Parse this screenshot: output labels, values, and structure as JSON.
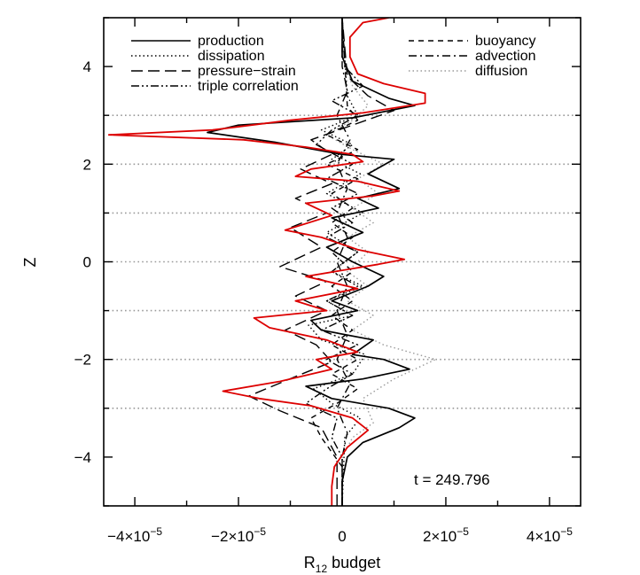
{
  "chart_data": {
    "type": "line",
    "title": "",
    "xlabel": "R",
    "xlabel_subscript": "12",
    "xlabel_suffix": "budget",
    "ylabel": "Z",
    "xlim": [
      -4.6e-05,
      4.6e-05
    ],
    "ylim": [
      -5,
      5
    ],
    "x_ticks": [
      {
        "value": -4e-05,
        "label_mantissa": "−4×10",
        "label_exp": "−5"
      },
      {
        "value": -2e-05,
        "label_mantissa": "−2×10",
        "label_exp": "−5"
      },
      {
        "value": 0,
        "label_mantissa": "0",
        "label_exp": ""
      },
      {
        "value": 2e-05,
        "label_mantissa": "2×10",
        "label_exp": "−5"
      },
      {
        "value": 4e-05,
        "label_mantissa": "4×10",
        "label_exp": "−5"
      }
    ],
    "y_ticks": [
      {
        "value": -4,
        "label": "−4"
      },
      {
        "value": -2,
        "label": "−2"
      },
      {
        "value": 0,
        "label": "0"
      },
      {
        "value": 2,
        "label": "2"
      },
      {
        "value": 4,
        "label": "4"
      }
    ],
    "gridlines_y": [
      -3,
      -2,
      -1,
      0,
      1,
      2,
      3
    ],
    "grid_color": "#9a9a9a",
    "annotation": "t  =  249.796",
    "legend_placement": "top",
    "legend": [
      {
        "name": "production",
        "style": "solid",
        "color": "#000000"
      },
      {
        "name": "dissipation",
        "style": "dotted",
        "color": "#000000"
      },
      {
        "name": "pressure−strain",
        "style": "longdash",
        "color": "#000000"
      },
      {
        "name": "triple correlation",
        "style": "dashdotdot",
        "color": "#000000"
      },
      {
        "name": "buoyancy",
        "style": "dashed",
        "color": "#000000"
      },
      {
        "name": "advection",
        "style": "dashdot",
        "color": "#000000"
      },
      {
        "name": "diffusion",
        "style": "dotted",
        "color": "#9a9a9a"
      }
    ],
    "series": [
      {
        "name": "production",
        "style": "solid",
        "color": "#000000",
        "points": [
          [
            0,
            -5
          ],
          [
            0,
            -4.5
          ],
          [
            1e-06,
            -4
          ],
          [
            4e-06,
            -3.7
          ],
          [
            1.1e-05,
            -3.4
          ],
          [
            1.4e-05,
            -3.2
          ],
          [
            9e-06,
            -3.0
          ],
          [
            -2e-06,
            -2.8
          ],
          [
            -7e-06,
            -2.55
          ],
          [
            4e-06,
            -2.4
          ],
          [
            1.3e-05,
            -2.2
          ],
          [
            8e-06,
            -2.0
          ],
          [
            2e-06,
            -1.9
          ],
          [
            6e-06,
            -1.6
          ],
          [
            -4e-06,
            -1.4
          ],
          [
            -6e-06,
            -1.2
          ],
          [
            3e-06,
            -1.0
          ],
          [
            -2e-06,
            -0.8
          ],
          [
            5e-06,
            -0.5
          ],
          [
            8e-06,
            -0.3
          ],
          [
            2e-06,
            0
          ],
          [
            -3e-06,
            0.3
          ],
          [
            4e-06,
            0.6
          ],
          [
            -2e-06,
            0.9
          ],
          [
            7e-06,
            1.1
          ],
          [
            3e-06,
            1.3
          ],
          [
            1.1e-05,
            1.5
          ],
          [
            5e-06,
            1.8
          ],
          [
            1e-05,
            2.1
          ],
          [
            0,
            2.2
          ],
          [
            -1.3e-05,
            2.45
          ],
          [
            -2.6e-05,
            2.65
          ],
          [
            -2e-05,
            2.8
          ],
          [
            2e-06,
            2.95
          ],
          [
            1.4e-05,
            3.2
          ],
          [
            9e-06,
            3.35
          ],
          [
            2e-06,
            3.7
          ],
          [
            0,
            4.2
          ],
          [
            0,
            5
          ]
        ]
      },
      {
        "name": "dissipation",
        "style": "dotted",
        "color": "#000000",
        "points": [
          [
            0,
            -5
          ],
          [
            5e-07,
            -3.6
          ],
          [
            3.5e-06,
            -3.2
          ],
          [
            -2e-06,
            -2.9
          ],
          [
            -5.5e-06,
            -2.6
          ],
          [
            2e-06,
            -2.3
          ],
          [
            4.5e-06,
            -1.9
          ],
          [
            -4e-06,
            -1.6
          ],
          [
            -6.5e-06,
            -1.3
          ],
          [
            2e-06,
            -1.1
          ],
          [
            -3e-06,
            -0.8
          ],
          [
            4e-06,
            -0.5
          ],
          [
            -2e-06,
            -0.2
          ],
          [
            3e-06,
            0.2
          ],
          [
            -3e-06,
            0.6
          ],
          [
            4e-06,
            1.0
          ],
          [
            -3e-06,
            1.4
          ],
          [
            3.5e-06,
            1.8
          ],
          [
            -2e-06,
            2.1
          ],
          [
            2e-06,
            2.4
          ],
          [
            -4e-06,
            2.7
          ],
          [
            3e-06,
            3.0
          ],
          [
            1e-06,
            3.4
          ],
          [
            0,
            5
          ]
        ]
      },
      {
        "name": "pressure−strain",
        "style": "longdash",
        "color": "#000000",
        "points": [
          [
            -1e-06,
            -5
          ],
          [
            -1e-06,
            -4.0
          ],
          [
            -4e-06,
            -3.4
          ],
          [
            -1.2e-05,
            -3.05
          ],
          [
            -1.8e-05,
            -2.75
          ],
          [
            -9e-06,
            -2.35
          ],
          [
            -2e-06,
            -2.05
          ],
          [
            -5e-06,
            -1.7
          ],
          [
            -1.1e-05,
            -1.4
          ],
          [
            -3e-06,
            -1.0
          ],
          [
            -9e-06,
            -0.7
          ],
          [
            -3e-06,
            -0.4
          ],
          [
            -1.2e-05,
            -0.1
          ],
          [
            -4e-06,
            0.3
          ],
          [
            -1e-05,
            0.7
          ],
          [
            -3e-06,
            1.0
          ],
          [
            -9e-06,
            1.3
          ],
          [
            -2e-06,
            1.6
          ],
          [
            -8e-06,
            1.9
          ],
          [
            -2e-06,
            2.2
          ],
          [
            -6e-06,
            2.5
          ],
          [
            2e-06,
            2.8
          ],
          [
            1e-05,
            3.1
          ],
          [
            5e-06,
            3.4
          ],
          [
            1e-06,
            3.8
          ],
          [
            0,
            5
          ]
        ]
      },
      {
        "name": "triple correlation",
        "style": "dashdotdot",
        "color": "#000000",
        "points": [
          [
            0,
            -5
          ],
          [
            0,
            -4
          ],
          [
            -2e-06,
            -3.6
          ],
          [
            -1e-06,
            -3.2
          ],
          [
            -7e-06,
            -2.9
          ],
          [
            -3e-06,
            -2.6
          ],
          [
            2e-06,
            -2.3
          ],
          [
            -3e-06,
            -2.0
          ],
          [
            3e-06,
            -1.7
          ],
          [
            -4e-06,
            -1.4
          ],
          [
            2e-06,
            -1.1
          ],
          [
            -3e-06,
            -0.8
          ],
          [
            3e-06,
            -0.5
          ],
          [
            -2e-06,
            -0.2
          ],
          [
            3e-06,
            0.2
          ],
          [
            -3e-06,
            0.5
          ],
          [
            2e-06,
            0.8
          ],
          [
            -2e-06,
            1.1
          ],
          [
            3e-06,
            1.4
          ],
          [
            -3e-06,
            1.7
          ],
          [
            2e-06,
            2.0
          ],
          [
            -5e-06,
            2.4
          ],
          [
            -2e-06,
            2.7
          ],
          [
            3e-06,
            3.0
          ],
          [
            -2e-06,
            3.3
          ],
          [
            4e-06,
            3.6
          ],
          [
            5e-07,
            4.0
          ],
          [
            0,
            5
          ]
        ]
      },
      {
        "name": "buoyancy",
        "style": "dashed",
        "color": "#000000",
        "points": [
          [
            0,
            -5
          ],
          [
            0,
            -4.2
          ],
          [
            -4e-06,
            -3.6
          ],
          [
            -6e-06,
            -3.2
          ],
          [
            -1e-06,
            -2.9
          ],
          [
            3e-06,
            -2.6
          ],
          [
            -2e-06,
            -2.3
          ],
          [
            3e-06,
            -2.0
          ],
          [
            -2e-06,
            -1.7
          ],
          [
            2e-06,
            -1.4
          ],
          [
            -2e-06,
            -1.1
          ],
          [
            2e-06,
            -0.8
          ],
          [
            -2e-06,
            -0.5
          ],
          [
            2e-06,
            -0.2
          ],
          [
            -2e-06,
            0.2
          ],
          [
            2e-06,
            0.5
          ],
          [
            -2e-06,
            0.8
          ],
          [
            2e-06,
            1.1
          ],
          [
            -2e-06,
            1.4
          ],
          [
            3e-06,
            1.7
          ],
          [
            -3e-06,
            2.0
          ],
          [
            3e-06,
            2.3
          ],
          [
            -3e-06,
            2.6
          ],
          [
            3e-06,
            2.9
          ],
          [
            1e-06,
            3.2
          ],
          [
            0,
            5
          ]
        ]
      },
      {
        "name": "advection",
        "style": "dashdot",
        "color": "#000000",
        "points": [
          [
            0,
            -5
          ],
          [
            0,
            -4
          ],
          [
            1e-06,
            -3.5
          ],
          [
            -1e-06,
            -3.0
          ],
          [
            1.5e-06,
            -2.5
          ],
          [
            -1e-06,
            -2.0
          ],
          [
            1e-06,
            -1.5
          ],
          [
            -1e-06,
            -1.0
          ],
          [
            1e-06,
            -0.5
          ],
          [
            -1e-06,
            0
          ],
          [
            1e-06,
            0.5
          ],
          [
            -1e-06,
            1.0
          ],
          [
            1e-06,
            1.5
          ],
          [
            -1e-06,
            2.0
          ],
          [
            1.5e-06,
            2.5
          ],
          [
            -1e-06,
            3.0
          ],
          [
            1e-06,
            3.5
          ],
          [
            0,
            4
          ],
          [
            0,
            5
          ]
        ]
      },
      {
        "name": "diffusion",
        "style": "dotted",
        "color": "#9a9a9a",
        "points": [
          [
            0,
            -5
          ],
          [
            0,
            -4
          ],
          [
            2e-06,
            -3.6
          ],
          [
            6e-06,
            -3.3
          ],
          [
            4e-06,
            -2.8
          ],
          [
            1e-05,
            -2.4
          ],
          [
            1.8e-05,
            -2.0
          ],
          [
            8e-06,
            -1.7
          ],
          [
            2e-06,
            -1.4
          ],
          [
            6e-06,
            -1.1
          ],
          [
            1e-06,
            -0.8
          ],
          [
            5e-06,
            -0.5
          ],
          [
            1e-06,
            -0.2
          ],
          [
            5e-06,
            0.2
          ],
          [
            1e-06,
            0.5
          ],
          [
            6e-06,
            0.8
          ],
          [
            2e-06,
            1.1
          ],
          [
            7e-06,
            1.4
          ],
          [
            3e-06,
            1.7
          ],
          [
            8e-06,
            2.0
          ],
          [
            2e-06,
            2.3
          ],
          [
            -3e-06,
            2.6
          ],
          [
            2e-06,
            2.9
          ],
          [
            5e-06,
            3.2
          ],
          [
            2e-06,
            3.6
          ],
          [
            0,
            4.2
          ],
          [
            0,
            5
          ]
        ]
      },
      {
        "name": "",
        "style": "solid",
        "color": "#dd0000",
        "points": [
          [
            -2e-06,
            -5
          ],
          [
            -2e-06,
            -4.6
          ],
          [
            -1.5e-06,
            -4.2
          ],
          [
            1e-06,
            -3.8
          ],
          [
            5e-06,
            -3.45
          ],
          [
            2e-06,
            -3.2
          ],
          [
            -6e-06,
            -2.95
          ],
          [
            -1.6e-05,
            -2.8
          ],
          [
            -2.3e-05,
            -2.65
          ],
          [
            -1.2e-05,
            -2.45
          ],
          [
            -2e-06,
            -2.2
          ],
          [
            -5e-06,
            -2.0
          ],
          [
            3e-06,
            -1.85
          ],
          [
            -3e-06,
            -1.6
          ],
          [
            -1.4e-05,
            -1.35
          ],
          [
            -1.7e-05,
            -1.15
          ],
          [
            -3e-06,
            -1.0
          ],
          [
            -9e-06,
            -0.8
          ],
          [
            3e-06,
            -0.55
          ],
          [
            -7e-06,
            -0.3
          ],
          [
            7e-06,
            -0.05
          ],
          [
            1.2e-05,
            0.05
          ],
          [
            3e-06,
            0.25
          ],
          [
            -4e-06,
            0.5
          ],
          [
            -1.1e-05,
            0.65
          ],
          [
            -2e-06,
            0.95
          ],
          [
            -7e-06,
            1.2
          ],
          [
            6e-06,
            1.35
          ],
          [
            1.1e-05,
            1.45
          ],
          [
            3e-06,
            1.65
          ],
          [
            -9e-06,
            1.75
          ],
          [
            -6e-06,
            1.9
          ],
          [
            4e-06,
            2.05
          ],
          [
            2e-06,
            2.2
          ],
          [
            -7e-06,
            2.35
          ],
          [
            -1.9e-05,
            2.5
          ],
          [
            -4.5e-05,
            2.6
          ],
          [
            -2.5e-05,
            2.7
          ],
          [
            -1e-05,
            2.9
          ],
          [
            4e-06,
            3.05
          ],
          [
            1.6e-05,
            3.25
          ],
          [
            1.6e-05,
            3.45
          ],
          [
            8e-06,
            3.65
          ],
          [
            3e-06,
            3.85
          ],
          [
            1.5e-06,
            4.2
          ],
          [
            1.5e-06,
            4.6
          ],
          [
            4e-06,
            4.9
          ],
          [
            9e-06,
            5
          ]
        ]
      }
    ]
  }
}
